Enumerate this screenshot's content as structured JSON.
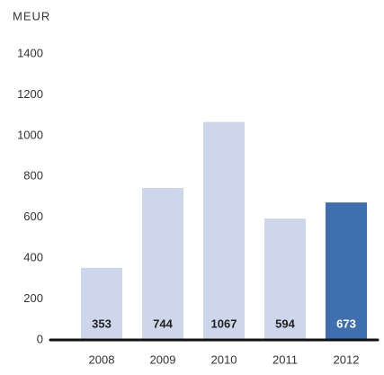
{
  "chart_data": {
    "type": "bar",
    "y_axis_label": "MEUR",
    "categories": [
      "2008",
      "2009",
      "2010",
      "2011",
      "2012"
    ],
    "values": [
      353,
      744,
      1067,
      594,
      673
    ],
    "colors": [
      "#cdd6ea",
      "#cdd6ea",
      "#cdd6ea",
      "#cdd6ea",
      "#3f6fae"
    ],
    "value_label_colors": [
      "#222222",
      "#222222",
      "#222222",
      "#222222",
      "#ffffff"
    ],
    "ylim": [
      0,
      1400
    ],
    "yticks": [
      0,
      200,
      400,
      600,
      800,
      1000,
      1200,
      1400
    ],
    "grid": false
  }
}
